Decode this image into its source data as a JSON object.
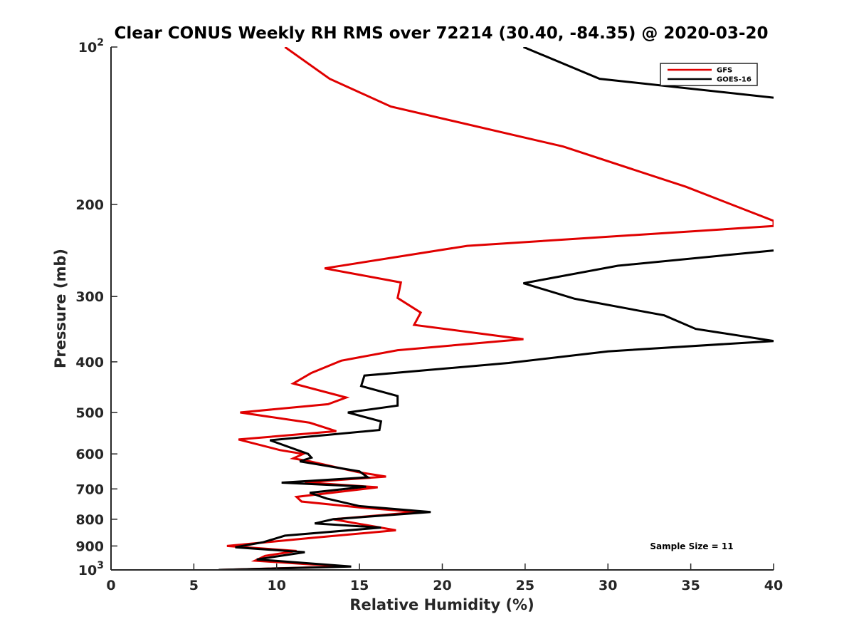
{
  "chart_data": {
    "type": "line",
    "orientation": "profile",
    "title": "Clear CONUS Weekly RH RMS over 72214 (30.40, -84.35) @ 2020-03-20",
    "xlabel": "Relative Humidity (%)",
    "ylabel": "Pressure (mb)",
    "xlim": [
      0,
      40
    ],
    "ylim": [
      1000,
      100
    ],
    "yscale": "log",
    "grid": false,
    "legend_position": "top-right",
    "x_ticks": [
      0,
      5,
      10,
      15,
      20,
      25,
      30,
      35,
      40
    ],
    "y_ticks": [
      {
        "value": 100,
        "base": "10",
        "exp": "2"
      },
      {
        "value": 200,
        "label": "200"
      },
      {
        "value": 300,
        "label": "300"
      },
      {
        "value": 400,
        "label": "400"
      },
      {
        "value": 500,
        "label": "500"
      },
      {
        "value": 600,
        "label": "600"
      },
      {
        "value": 700,
        "label": "700"
      },
      {
        "value": 800,
        "label": "800"
      },
      {
        "value": 900,
        "label": "900"
      },
      {
        "value": 1000,
        "base": "10",
        "exp": "3"
      }
    ],
    "annotation": "Sample Size = 11",
    "series": [
      {
        "name": "GFS",
        "color": "#e00000",
        "points": [
          [
            10.5,
            100
          ],
          [
            13.2,
            115
          ],
          [
            16.9,
            130
          ],
          [
            27.3,
            155
          ],
          [
            34.7,
            185
          ],
          [
            40.0,
            215
          ],
          [
            40.0,
            220
          ],
          [
            21.5,
            240
          ],
          [
            12.9,
            265
          ],
          [
            17.5,
            282
          ],
          [
            17.3,
            302
          ],
          [
            18.7,
            322
          ],
          [
            18.3,
            340
          ],
          [
            24.9,
            362
          ],
          [
            17.3,
            380
          ],
          [
            13.9,
            398
          ],
          [
            12.1,
            420
          ],
          [
            11.0,
            440
          ],
          [
            14.2,
            468
          ],
          [
            13.1,
            482
          ],
          [
            7.8,
            500
          ],
          [
            12.0,
            523
          ],
          [
            13.6,
            543
          ],
          [
            7.7,
            563
          ],
          [
            10.2,
            590
          ],
          [
            11.6,
            600
          ],
          [
            11.0,
            612
          ],
          [
            12.0,
            620
          ],
          [
            14.9,
            650
          ],
          [
            16.6,
            663
          ],
          [
            11.7,
            680
          ],
          [
            16.1,
            695
          ],
          [
            11.2,
            725
          ],
          [
            11.5,
            740
          ],
          [
            15.1,
            760
          ],
          [
            18.5,
            775
          ],
          [
            13.4,
            800
          ],
          [
            17.2,
            840
          ],
          [
            12.2,
            868
          ],
          [
            7.0,
            900
          ],
          [
            11.2,
            920
          ],
          [
            9.3,
            940
          ],
          [
            8.7,
            960
          ],
          [
            14.0,
            985
          ],
          [
            6.6,
            1000
          ]
        ]
      },
      {
        "name": "GOES-16",
        "color": "#000000",
        "points": [
          [
            24.9,
            100
          ],
          [
            29.5,
            115
          ],
          [
            40.0,
            125
          ],
          [
            null,
            215
          ],
          [
            40.0,
            245
          ],
          [
            30.6,
            262
          ],
          [
            24.9,
            283
          ],
          [
            28.0,
            303
          ],
          [
            33.4,
            326
          ],
          [
            35.3,
            346
          ],
          [
            40.0,
            365
          ],
          [
            30.0,
            382
          ],
          [
            24.0,
            402
          ],
          [
            15.3,
            425
          ],
          [
            15.1,
            445
          ],
          [
            17.3,
            465
          ],
          [
            17.3,
            485
          ],
          [
            14.3,
            500
          ],
          [
            16.3,
            520
          ],
          [
            16.2,
            540
          ],
          [
            9.6,
            565
          ],
          [
            11.9,
            600
          ],
          [
            12.1,
            610
          ],
          [
            11.4,
            620
          ],
          [
            15.0,
            648
          ],
          [
            15.5,
            665
          ],
          [
            10.3,
            681
          ],
          [
            15.4,
            693
          ],
          [
            12.0,
            712
          ],
          [
            13.0,
            730
          ],
          [
            15.0,
            755
          ],
          [
            19.3,
            775
          ],
          [
            13.4,
            800
          ],
          [
            12.3,
            815
          ],
          [
            16.3,
            830
          ],
          [
            10.5,
            860
          ],
          [
            9.2,
            885
          ],
          [
            7.5,
            905
          ],
          [
            11.7,
            925
          ],
          [
            8.8,
            955
          ],
          [
            14.5,
            985
          ],
          [
            6.5,
            1000
          ]
        ]
      }
    ]
  }
}
